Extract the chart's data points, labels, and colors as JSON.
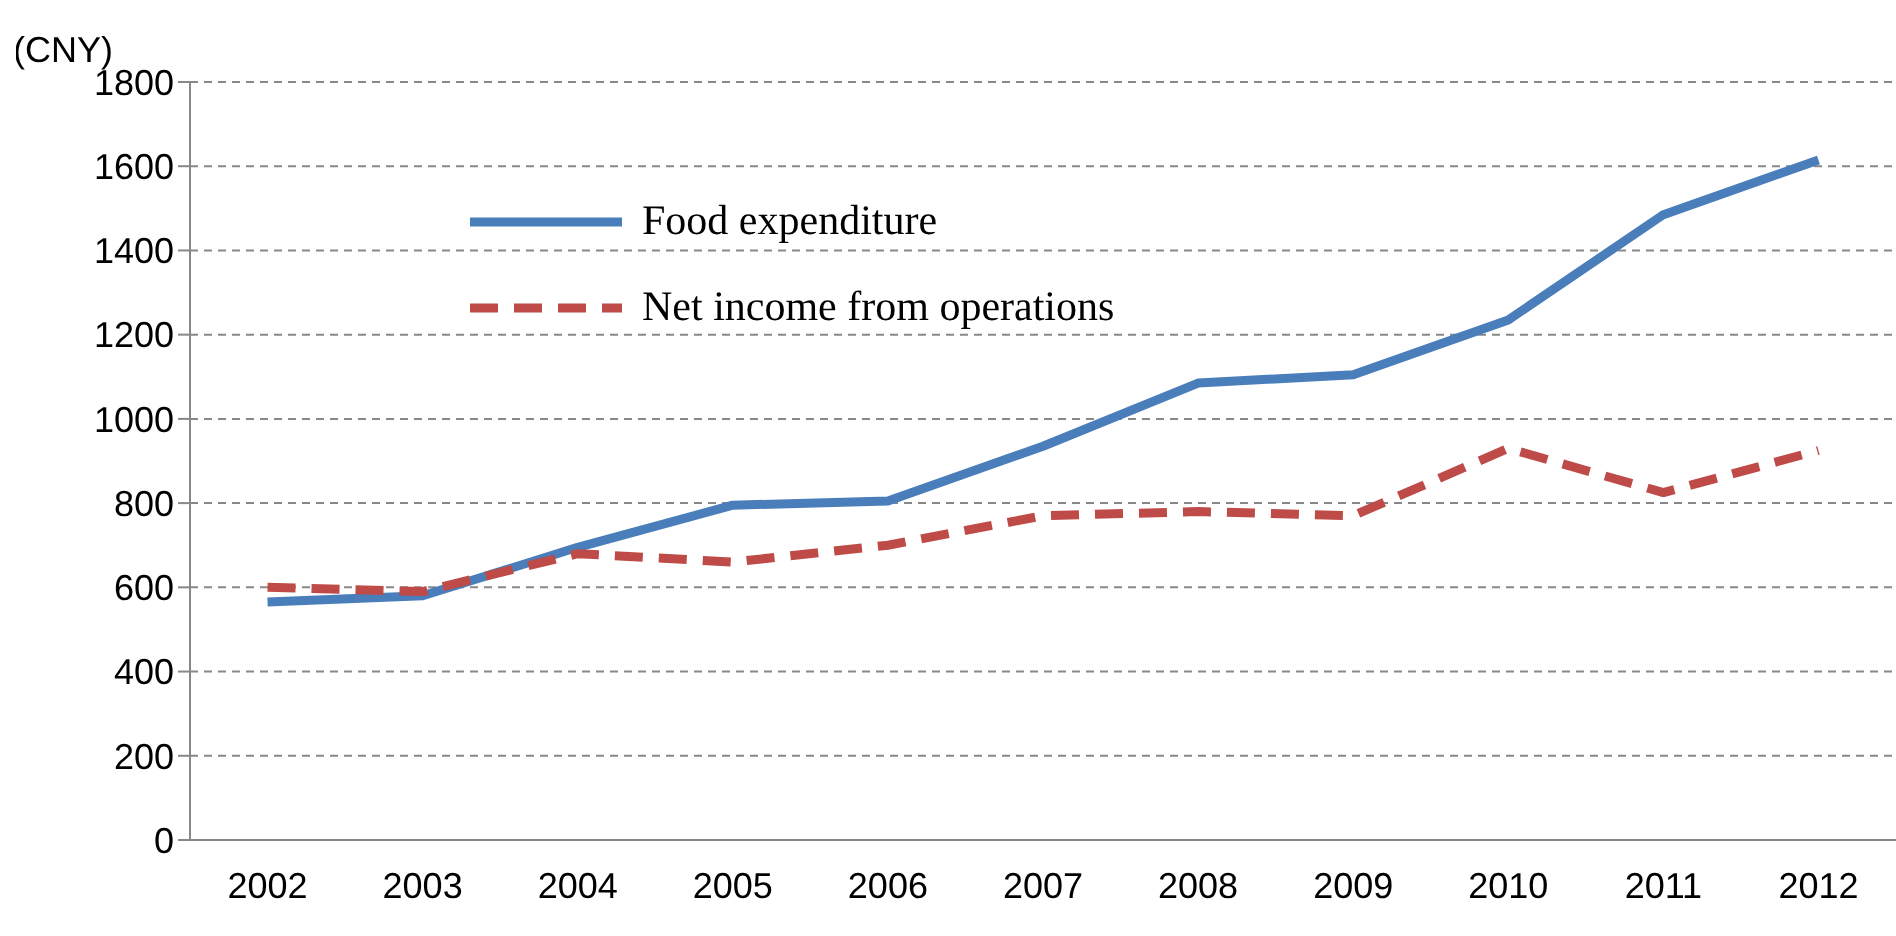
{
  "chart_data": {
    "type": "line",
    "ylabel": "(CNY)",
    "categories": [
      "2002",
      "2003",
      "2004",
      "2005",
      "2006",
      "2007",
      "2008",
      "2009",
      "2010",
      "2011",
      "2012"
    ],
    "series": [
      {
        "name": "Food expenditure",
        "color": "#4a7ebb",
        "line_style": "solid",
        "values": [
          565,
          580,
          695,
          795,
          805,
          935,
          1085,
          1105,
          1235,
          1485,
          1615
        ]
      },
      {
        "name": "Net income from operations",
        "color": "#be4b48",
        "line_style": "dashed",
        "values": [
          600,
          590,
          680,
          660,
          700,
          770,
          780,
          770,
          930,
          825,
          925
        ]
      }
    ],
    "ylim": [
      0,
      1800
    ],
    "yticks": [
      0,
      200,
      400,
      600,
      800,
      1000,
      1200,
      1400,
      1600,
      1800
    ],
    "grid": "y",
    "legend": "top left",
    "marker": "none"
  }
}
